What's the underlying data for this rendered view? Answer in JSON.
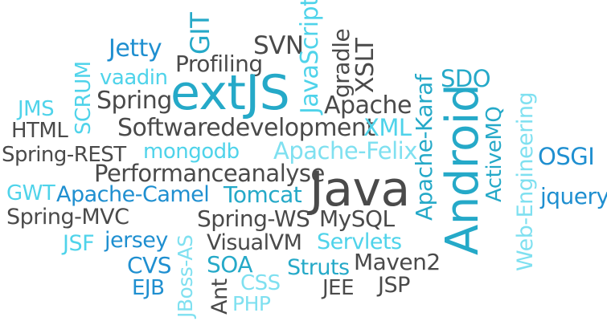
{
  "colors": {
    "dark": "#4a4a4a",
    "blue": "#1f8fd0",
    "teal": "#25a9c8",
    "cyan": "#4fd3ea",
    "light": "#7fe0f0"
  },
  "words": [
    {
      "id": "jetty",
      "text": "Jetty"
    },
    {
      "id": "git",
      "text": "GIT"
    },
    {
      "id": "svn",
      "text": "SVN"
    },
    {
      "id": "javascript",
      "text": "JavaScript"
    },
    {
      "id": "gradle",
      "text": "gradle"
    },
    {
      "id": "xslt",
      "text": "XSLT"
    },
    {
      "id": "scrum",
      "text": "SCRUM"
    },
    {
      "id": "vaadin",
      "text": "vaadin"
    },
    {
      "id": "profiling",
      "text": "Profiling"
    },
    {
      "id": "extjs",
      "text": "extJS"
    },
    {
      "id": "sdo",
      "text": "SDO"
    },
    {
      "id": "jms",
      "text": "JMS"
    },
    {
      "id": "spring",
      "text": "Spring"
    },
    {
      "id": "apache",
      "text": "Apache"
    },
    {
      "id": "apache-karaf",
      "text": "Apache-Karaf"
    },
    {
      "id": "android",
      "text": "Android"
    },
    {
      "id": "activemq",
      "text": "ActiveMQ"
    },
    {
      "id": "web-engineering",
      "text": "Web-Engineering"
    },
    {
      "id": "html",
      "text": "HTML"
    },
    {
      "id": "softwaredevelopment",
      "text": "Softwaredevelopment"
    },
    {
      "id": "xml",
      "text": "XML"
    },
    {
      "id": "spring-rest",
      "text": "Spring-REST"
    },
    {
      "id": "mongodb",
      "text": "mongodb"
    },
    {
      "id": "apache-felix",
      "text": "Apache-Felix"
    },
    {
      "id": "osgi",
      "text": "OSGI"
    },
    {
      "id": "performanceanalyse",
      "text": "Performanceanalyse"
    },
    {
      "id": "gwt",
      "text": "GWT"
    },
    {
      "id": "apache-camel",
      "text": "Apache-Camel"
    },
    {
      "id": "tomcat",
      "text": "Tomcat"
    },
    {
      "id": "java",
      "text": "Java"
    },
    {
      "id": "jquery",
      "text": "jquery"
    },
    {
      "id": "spring-mvc",
      "text": "Spring-MVC"
    },
    {
      "id": "spring-ws",
      "text": "Spring-WS"
    },
    {
      "id": "mysql",
      "text": "MySQL"
    },
    {
      "id": "jsf",
      "text": "JSF"
    },
    {
      "id": "jersey",
      "text": "jersey"
    },
    {
      "id": "jboss-as",
      "text": "JBoss-AS"
    },
    {
      "id": "visualvm",
      "text": "VisualVM"
    },
    {
      "id": "servlets",
      "text": "Servlets"
    },
    {
      "id": "cvs",
      "text": "CVS"
    },
    {
      "id": "soa",
      "text": "SOA"
    },
    {
      "id": "struts",
      "text": "Struts"
    },
    {
      "id": "maven2",
      "text": "Maven2"
    },
    {
      "id": "ejb",
      "text": "EJB"
    },
    {
      "id": "ant",
      "text": "Ant"
    },
    {
      "id": "css",
      "text": "CSS"
    },
    {
      "id": "jee",
      "text": "JEE"
    },
    {
      "id": "jsp",
      "text": "JSP"
    },
    {
      "id": "php",
      "text": "PHP"
    }
  ]
}
